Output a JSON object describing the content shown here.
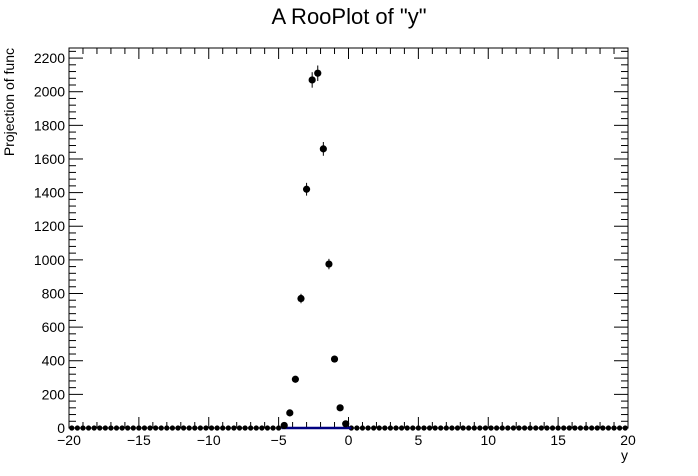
{
  "chart_data": {
    "type": "scatter",
    "title": "A RooPlot of \"y\"",
    "xlabel": "y",
    "ylabel": "Projection of func",
    "xlim": [
      -20,
      20
    ],
    "ylim": [
      0,
      2260
    ],
    "x_ticks": [
      -20,
      -15,
      -10,
      -5,
      0,
      5,
      10,
      15,
      20
    ],
    "x_tick_labels": [
      "−20",
      "−15",
      "−10",
      "−5",
      "0",
      "5",
      "10",
      "15",
      "20"
    ],
    "y_ticks": [
      0,
      200,
      400,
      600,
      800,
      1000,
      1200,
      1400,
      1600,
      1800,
      2000,
      2200
    ],
    "y_tick_labels": [
      "0",
      "200",
      "400",
      "600",
      "800",
      "1000",
      "1200",
      "1400",
      "1600",
      "1800",
      "2000",
      "2200"
    ],
    "grid": false,
    "series": [
      {
        "x": [
          -4.6,
          -4.2,
          -3.8,
          -3.4,
          -3.0,
          -2.6,
          -2.2,
          -1.8,
          -1.4,
          -1.0,
          -0.6,
          -0.2
        ],
        "y": [
          15,
          90,
          290,
          770,
          1420,
          2070,
          2110,
          1660,
          975,
          410,
          120,
          25
        ],
        "err": [
          4,
          10,
          17,
          28,
          38,
          46,
          46,
          41,
          31,
          20,
          11,
          5
        ]
      }
    ],
    "zero_bins": {
      "x_start": -19.8,
      "x_end": 19.8,
      "step": 0.4,
      "y": 0
    },
    "curve": {
      "x": [
        -4.8,
        0.2
      ],
      "y": [
        0,
        0
      ],
      "color": "#000080"
    },
    "marker_color": "#000000"
  }
}
